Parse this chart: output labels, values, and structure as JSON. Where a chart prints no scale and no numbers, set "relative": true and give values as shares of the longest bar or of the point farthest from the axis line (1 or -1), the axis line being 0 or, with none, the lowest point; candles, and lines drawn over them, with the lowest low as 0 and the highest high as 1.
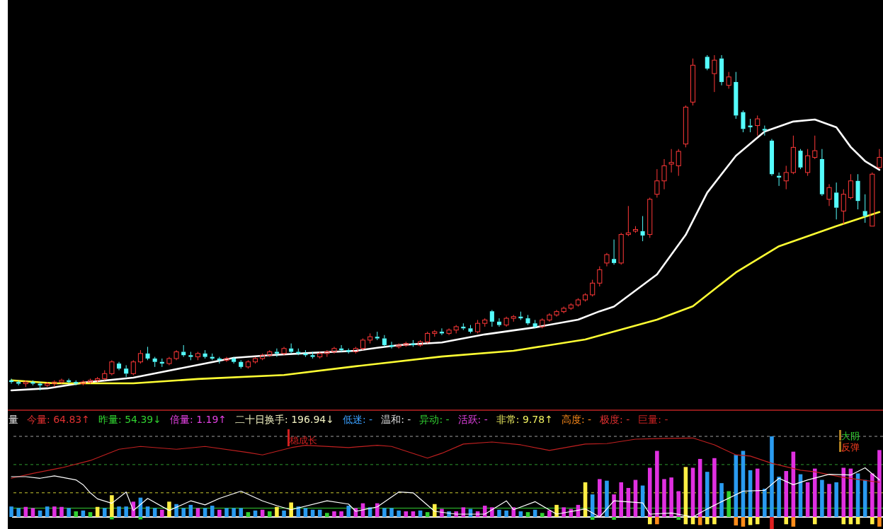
{
  "chart_data": [
    {
      "type": "candlestick",
      "relative": true,
      "colors": [
        "#54fcfc",
        "#54fcfc",
        "#ff3838",
        "#54fcfc",
        "#54fcfc",
        "#ff3838",
        "#ff3838",
        "#ff3838",
        "#54fcfc",
        "#54fcfc",
        "#ff3838",
        "#ff3838",
        "#ff3838",
        "#ff3838",
        "#ff3838",
        "#54fcfc",
        "#54fcfc",
        "#ff3838",
        "#ff3838",
        "#54fcfc",
        "#54fcfc",
        "#54fcfc",
        "#ff3838",
        "#ff3838",
        "#54fcfc",
        "#54fcfc",
        "#ff3838",
        "#54fcfc",
        "#54fcfc",
        "#54fcfc",
        "#ff3838",
        "#54fcfc",
        "#54fcfc",
        "#ff3838",
        "#ff3838",
        "#ff3838",
        "#ff3838",
        "#54fcfc",
        "#ff3838",
        "#54fcfc",
        "#54fcfc",
        "#54fcfc",
        "#54fcfc",
        "#ff3838",
        "#ff3838",
        "#ff3838",
        "#54fcfc",
        "#54fcfc",
        "#ff3838",
        "#ff3838",
        "#ff3838",
        "#54fcfc",
        "#54fcfc",
        "#54fcfc",
        "#ff3838",
        "#ff3838",
        "#54fcfc",
        "#ff3838",
        "#ff3838",
        "#ff3838",
        "#54fcfc",
        "#ff3838",
        "#ff3838",
        "#54fcfc",
        "#54fcfc",
        "#ff3838",
        "#ff3838",
        "#54fcfc",
        "#54fcfc",
        "#ff3838",
        "#ff3838",
        "#54fcfc",
        "#54fcfc",
        "#54fcfc",
        "#ff3838",
        "#ff3838",
        "#ff3838",
        "#ff3838",
        "#ff3838",
        "#ff3838",
        "#ff3838",
        "#ff3838",
        "#ff3838",
        "#ff3838",
        "#54fcfc",
        "#ff3838",
        "#ff3838",
        "#ff3838",
        "#54fcfc",
        "#ff3838",
        "#ff3838",
        "#ff3838",
        "#ff3838",
        "#ff3838",
        "#ff3838",
        "#ff3838",
        null,
        "#54fcfc",
        "#ff3838",
        "#54fcfc",
        "#ff3838",
        "#54fcfc",
        "#54fcfc",
        "#54fcfc",
        "#ff3838",
        "#54fcfc",
        "#54fcfc",
        "#54fcfc",
        "#ff3838",
        "#ff3838",
        "#54fcfc",
        "#ff3838",
        "#ff3838",
        "#54fcfc",
        "#ff3838",
        "#54fcfc",
        "#ff3838",
        "#ff3838",
        "#54fcfc",
        "#54fcfc",
        "#ff3838",
        "#ff3838"
      ],
      "categories": [
        null,
        null,
        null,
        null,
        null,
        null,
        null,
        null,
        null,
        null,
        null,
        null,
        null,
        null,
        null,
        null,
        null,
        null,
        null,
        null,
        null,
        null,
        null,
        null,
        null,
        null,
        null,
        null,
        null,
        null,
        null,
        null,
        null,
        null,
        null,
        null,
        null,
        null,
        null,
        null,
        null,
        null,
        null,
        null,
        null,
        null,
        null,
        null,
        null,
        null,
        null,
        null,
        null,
        null,
        null,
        null,
        null,
        null,
        null,
        null,
        null,
        null,
        null,
        null,
        null,
        null,
        null,
        null,
        null,
        null,
        null,
        null,
        null,
        null,
        null,
        null,
        null,
        null,
        null,
        null,
        null,
        null,
        null,
        null,
        null,
        null,
        null,
        null,
        null,
        null,
        null,
        null,
        null,
        null,
        null,
        null,
        null,
        null,
        null,
        null,
        null,
        null,
        null,
        null,
        null,
        null,
        null,
        null,
        null,
        null,
        null,
        null,
        null,
        null,
        null,
        null,
        null,
        null,
        null,
        null,
        null,
        null
      ],
      "ohlc": [
        [
          0.03,
          0.035,
          0.02,
          0.025
        ],
        [
          0.025,
          0.03,
          0.015,
          0.02
        ],
        [
          0.02,
          0.03,
          0.01,
          0.025
        ],
        [
          0.025,
          0.03,
          0.015,
          0.02
        ],
        [
          0.02,
          0.025,
          0.0,
          0.015
        ],
        [
          0.015,
          0.025,
          0.01,
          0.02
        ],
        [
          0.02,
          0.03,
          0.01,
          0.025
        ],
        [
          0.025,
          0.035,
          0.02,
          0.03
        ],
        [
          0.03,
          0.035,
          0.02,
          0.025
        ],
        [
          0.025,
          0.03,
          0.015,
          0.02
        ],
        [
          0.02,
          0.03,
          0.015,
          0.025
        ],
        [
          0.025,
          0.035,
          0.02,
          0.03
        ],
        [
          0.03,
          0.04,
          0.025,
          0.035
        ],
        [
          0.035,
          0.06,
          0.03,
          0.05
        ],
        [
          0.05,
          0.09,
          0.045,
          0.085
        ],
        [
          0.08,
          0.085,
          0.06,
          0.065
        ],
        [
          0.065,
          0.075,
          0.04,
          0.05
        ],
        [
          0.05,
          0.09,
          0.045,
          0.085
        ],
        [
          0.085,
          0.12,
          0.08,
          0.11
        ],
        [
          0.11,
          0.13,
          0.09,
          0.095
        ],
        [
          0.095,
          0.1,
          0.07,
          0.085
        ],
        [
          0.085,
          0.095,
          0.07,
          0.08
        ],
        [
          0.08,
          0.1,
          0.075,
          0.095
        ],
        [
          0.095,
          0.12,
          0.09,
          0.115
        ],
        [
          0.115,
          0.135,
          0.1,
          0.105
        ],
        [
          0.105,
          0.115,
          0.09,
          0.1
        ],
        [
          0.1,
          0.115,
          0.09,
          0.11
        ],
        [
          0.11,
          0.12,
          0.095,
          0.1
        ],
        [
          0.1,
          0.11,
          0.09,
          0.095
        ],
        [
          0.095,
          0.1,
          0.08,
          0.09
        ],
        [
          0.09,
          0.1,
          0.085,
          0.095
        ],
        [
          0.095,
          0.1,
          0.08,
          0.085
        ],
        [
          0.085,
          0.09,
          0.065,
          0.07
        ],
        [
          0.07,
          0.09,
          0.065,
          0.085
        ],
        [
          0.085,
          0.1,
          0.08,
          0.095
        ],
        [
          0.095,
          0.11,
          0.09,
          0.105
        ],
        [
          0.105,
          0.12,
          0.1,
          0.115
        ],
        [
          0.115,
          0.125,
          0.1,
          0.11
        ],
        [
          0.11,
          0.13,
          0.105,
          0.125
        ],
        [
          0.125,
          0.14,
          0.11,
          0.115
        ],
        [
          0.115,
          0.125,
          0.105,
          0.11
        ],
        [
          0.11,
          0.12,
          0.1,
          0.105
        ],
        [
          0.105,
          0.115,
          0.095,
          0.1
        ],
        [
          0.1,
          0.115,
          0.095,
          0.11
        ],
        [
          0.11,
          0.12,
          0.1,
          0.115
        ],
        [
          0.115,
          0.13,
          0.11,
          0.125
        ],
        [
          0.125,
          0.135,
          0.115,
          0.12
        ],
        [
          0.12,
          0.125,
          0.11,
          0.115
        ],
        [
          0.115,
          0.13,
          0.11,
          0.125
        ],
        [
          0.125,
          0.155,
          0.12,
          0.15
        ],
        [
          0.15,
          0.17,
          0.14,
          0.16
        ],
        [
          0.16,
          0.175,
          0.15,
          0.155
        ],
        [
          0.155,
          0.165,
          0.13,
          0.135
        ],
        [
          0.135,
          0.145,
          0.125,
          0.13
        ],
        [
          0.13,
          0.14,
          0.125,
          0.135
        ],
        [
          0.135,
          0.145,
          0.13,
          0.14
        ],
        [
          0.14,
          0.15,
          0.13,
          0.135
        ],
        [
          0.135,
          0.15,
          0.13,
          0.145
        ],
        [
          0.145,
          0.175,
          0.14,
          0.17
        ],
        [
          0.17,
          0.18,
          0.16,
          0.175
        ],
        [
          0.175,
          0.185,
          0.165,
          0.17
        ],
        [
          0.17,
          0.185,
          0.165,
          0.18
        ],
        [
          0.18,
          0.195,
          0.17,
          0.19
        ],
        [
          0.19,
          0.2,
          0.18,
          0.185
        ],
        [
          0.185,
          0.195,
          0.17,
          0.175
        ],
        [
          0.175,
          0.21,
          0.17,
          0.2
        ],
        [
          0.2,
          0.215,
          0.19,
          0.21
        ],
        [
          0.236,
          0.24,
          0.19,
          0.205
        ],
        [
          0.205,
          0.215,
          0.19,
          0.195
        ],
        [
          0.195,
          0.22,
          0.19,
          0.215
        ],
        [
          0.215,
          0.225,
          0.205,
          0.22
        ],
        [
          0.22,
          0.235,
          0.21,
          0.215
        ],
        [
          0.215,
          0.225,
          0.195,
          0.2
        ],
        [
          0.2,
          0.21,
          0.185,
          0.19
        ],
        [
          0.19,
          0.215,
          0.185,
          0.21
        ],
        [
          0.21,
          0.23,
          0.205,
          0.225
        ],
        [
          0.225,
          0.24,
          0.22,
          0.235
        ],
        [
          0.235,
          0.25,
          0.23,
          0.245
        ],
        [
          0.245,
          0.26,
          0.24,
          0.255
        ],
        [
          0.255,
          0.275,
          0.25,
          0.27
        ],
        [
          0.27,
          0.29,
          0.265,
          0.285
        ],
        [
          0.285,
          0.33,
          0.28,
          0.32
        ],
        [
          0.32,
          0.37,
          0.31,
          0.36
        ],
        [
          0.38,
          0.41,
          0.37,
          0.405
        ],
        [
          0.392,
          0.45,
          0.375,
          0.38
        ],
        [
          0.38,
          0.47,
          0.375,
          0.465
        ],
        [
          0.465,
          0.55,
          0.46,
          0.47
        ],
        [
          0.475,
          0.49,
          0.47,
          0.48
        ],
        [
          0.475,
          0.52,
          0.445,
          0.462
        ],
        [
          0.465,
          0.575,
          0.455,
          0.57
        ],
        [
          0.585,
          0.66,
          0.575,
          0.625
        ],
        [
          0.625,
          0.69,
          0.6,
          0.67
        ],
        [
          0.675,
          0.72,
          0.65,
          0.68
        ],
        [
          0.67,
          0.72,
          0.64,
          0.713
        ],
        [
          0.735,
          0.85,
          0.725,
          0.845
        ],
        [
          0.86,
          0.99,
          0.85,
          0.97
        ],
        null,
        [
          0.995,
          1.0,
          0.955,
          0.96
        ],
        [
          0.945,
          1.0,
          0.89,
          0.985
        ],
        [
          0.99,
          1.0,
          0.91,
          0.92
        ],
        [
          0.91,
          0.95,
          0.9,
          0.935
        ],
        [
          0.92,
          0.95,
          0.81,
          0.82
        ],
        [
          0.83,
          0.835,
          0.77,
          0.78
        ],
        [
          0.79,
          0.81,
          0.77,
          0.785
        ],
        [
          0.79,
          0.82,
          0.76,
          0.81
        ],
        [
          0.78,
          0.79,
          0.76,
          0.775
        ],
        [
          0.745,
          0.75,
          0.64,
          0.645
        ],
        [
          0.64,
          0.65,
          0.61,
          0.635
        ],
        [
          0.625,
          0.67,
          0.6,
          0.65
        ],
        [
          0.65,
          0.76,
          0.645,
          0.725
        ],
        [
          0.715,
          0.72,
          0.66,
          0.665
        ],
        [
          0.65,
          0.72,
          0.64,
          0.7
        ],
        [
          0.695,
          0.76,
          0.69,
          0.715
        ],
        [
          0.69,
          0.72,
          0.58,
          0.585
        ],
        [
          0.57,
          0.615,
          0.55,
          0.605
        ],
        [
          0.59,
          0.62,
          0.51,
          0.545
        ],
        [
          0.535,
          0.6,
          0.495,
          0.585
        ],
        [
          0.575,
          0.645,
          0.57,
          0.625
        ],
        [
          0.625,
          0.645,
          0.54,
          0.565
        ],
        [
          0.535,
          0.585,
          0.5,
          0.52
        ],
        [
          0.49,
          0.65,
          0.49,
          0.645
        ],
        [
          0.665,
          0.72,
          0.66,
          0.695
        ]
      ],
      "series": [
        {
          "type": "line",
          "color": "#ffffff",
          "values": [
            0,
            null,
            null,
            null,
            null,
            0.006,
            null,
            null,
            null,
            null,
            0.023,
            null,
            null,
            null,
            null,
            null,
            null,
            0.038,
            null,
            null,
            null,
            0.055,
            null,
            null,
            null,
            null,
            0.076,
            null,
            null,
            null,
            null,
            0.097,
            null,
            null,
            null,
            null,
            0.105,
            null,
            null,
            null,
            null,
            null,
            0.112,
            null,
            null,
            null,
            null,
            null,
            0.118,
            null,
            null,
            0.127,
            null,
            null,
            0.135,
            null,
            null,
            null,
            null,
            null,
            0.143,
            null,
            null,
            null,
            null,
            null,
            0.167,
            null,
            null,
            null,
            null,
            null,
            null,
            0.188,
            null,
            null,
            null,
            null,
            null,
            0.211,
            null,
            null,
            0.236,
            null,
            0.25,
            null,
            null,
            null,
            null,
            null,
            0.346,
            null,
            null,
            null,
            0.464,
            null,
            null,
            0.59,
            null,
            null,
            null,
            0.7,
            null,
            null,
            null,
            0.772,
            null,
            null,
            null,
            0.802,
            null,
            null,
            0.808,
            null,
            null,
            0.785,
            null,
            0.726,
            null,
            0.684,
            null,
            0.658
          ]
        },
        {
          "type": "line",
          "color": "#ffff33",
          "values": [
            0.03,
            null,
            null,
            null,
            null,
            null,
            0.021,
            null,
            null,
            null,
            null,
            null,
            null,
            null,
            null,
            null,
            null,
            0.021,
            null,
            null,
            null,
            null,
            null,
            null,
            null,
            null,
            0.034,
            null,
            null,
            null,
            null,
            null,
            null,
            null,
            null,
            null,
            null,
            null,
            0.046,
            null,
            null,
            null,
            null,
            null,
            null,
            null,
            null,
            null,
            0.072,
            null,
            null,
            null,
            null,
            null,
            null,
            null,
            null,
            null,
            null,
            null,
            0.101,
            null,
            null,
            null,
            null,
            null,
            null,
            null,
            null,
            null,
            0.118,
            null,
            null,
            null,
            null,
            null,
            null,
            null,
            null,
            null,
            0.152,
            null,
            null,
            null,
            null,
            null,
            null,
            null,
            null,
            null,
            0.211,
            null,
            null,
            null,
            null,
            0.251,
            null,
            null,
            null,
            null,
            null,
            0.352,
            null,
            null,
            null,
            null,
            null,
            0.43,
            null,
            null,
            null,
            null,
            null,
            null,
            null,
            0.49,
            null,
            null,
            null,
            null,
            null,
            0.532
          ]
        }
      ]
    },
    {
      "type": "bar",
      "relative": true,
      "line_style": "solid",
      "categories": [
        null,
        null,
        null,
        null,
        null,
        null,
        null,
        null,
        null,
        null,
        null,
        null,
        null,
        null,
        null,
        null,
        null,
        null,
        null,
        null,
        null,
        null,
        null,
        null,
        null,
        null,
        null,
        null,
        null,
        null,
        null,
        null,
        null,
        null,
        null,
        null,
        null,
        null,
        null,
        null,
        null,
        null,
        null,
        null,
        null,
        null,
        null,
        null,
        null,
        null,
        null,
        null,
        null,
        null,
        null,
        null,
        null,
        null,
        null,
        null,
        null,
        null,
        null,
        null,
        null,
        null,
        null,
        null,
        null,
        null,
        null,
        null,
        null,
        null,
        null,
        null,
        null,
        null,
        null,
        null,
        null,
        null,
        null,
        null,
        null,
        null,
        null,
        null,
        null,
        null,
        null,
        null,
        null,
        null,
        null,
        null,
        null,
        null,
        null,
        null,
        null,
        null,
        null,
        null,
        null,
        null,
        null,
        null,
        null,
        null,
        null,
        null,
        null,
        null,
        null,
        null,
        null,
        null,
        null,
        null,
        null,
        null
      ],
      "series": [
        {
          "type": "bar",
          "values": [
            0.13,
            0.11,
            0.125,
            0.11,
            0.08,
            0.13,
            0.13,
            0.125,
            0.11,
            0.07,
            0.08,
            0.06,
            0.125,
            0.11,
            0.27,
            0.13,
            0.13,
            0.19,
            0.24,
            0.13,
            0.11,
            0.09,
            0.19,
            0.16,
            0.11,
            0.15,
            0.11,
            0.11,
            0.14,
            0.09,
            0.11,
            0.11,
            0.11,
            0.06,
            0.08,
            0.09,
            0.07,
            0.125,
            0.08,
            0.18,
            0.13,
            0.11,
            0.09,
            0.09,
            0.05,
            0.07,
            0.07,
            0.14,
            0.11,
            0.17,
            0.12,
            0.17,
            0.11,
            0.11,
            0.08,
            0.07,
            0.07,
            0.08,
            0.06,
            0.16,
            0.1,
            0.07,
            0.07,
            0.12,
            0.1,
            0.07,
            0.14,
            0.12,
            0.09,
            0.08,
            0.12,
            0.07,
            0.06,
            0.09,
            0.05,
            0.08,
            0.15,
            0.12,
            0.1,
            0.15,
            0.43,
            0.28,
            0.47,
            0.45,
            0.28,
            0.43,
            0.36,
            0.46,
            0.39,
            0.61,
            0.82,
            0.47,
            0.49,
            0.32,
            0.62,
            0.61,
            0.72,
            0.56,
            0.73,
            0.42,
            0.32,
            0.77,
            0.82,
            0.58,
            0.6,
            0.35,
            1.0,
            0.5,
            0.57,
            0.81,
            0.53,
            0.43,
            0.6,
            0.46,
            0.41,
            0.43,
            0.61,
            0.6,
            0.54,
            0.46,
            0.54,
            0.83
          ],
          "colors": [
            "#2a9bf0",
            "#2a9bf0",
            "#e030e0",
            "#e030e0",
            "#2a9bf0",
            "#2a9bf0",
            "#e030e0",
            "#e030e0",
            "#2a9bf0",
            "#30d030",
            "#2a9bf0",
            "#30d030",
            "#ffee44",
            "#2a9bf0",
            "#ffee44",
            "#2a9bf0",
            "#2a9bf0",
            "#e030e0",
            "#2a9bf0",
            "#2a9bf0",
            "#2a9bf0",
            "#e030e0",
            "#ffee44",
            "#2a9bf0",
            "#2a9bf0",
            "#2a9bf0",
            "#e030e0",
            "#2a9bf0",
            "#2a9bf0",
            "#e030e0",
            "#2a9bf0",
            "#2a9bf0",
            "#2a9bf0",
            "#30d030",
            "#2a9bf0",
            "#e030e0",
            "#30d030",
            "#ffee44",
            "#2a9bf0",
            "#ffee44",
            "#2a9bf0",
            "#2a9bf0",
            "#2a9bf0",
            "#2a9bf0",
            "#30d030",
            "#e030e0",
            "#e030e0",
            "#2a9bf0",
            "#e030e0",
            "#e030e0",
            "#2a9bf0",
            "#e030e0",
            "#2a9bf0",
            "#2a9bf0",
            "#2a9bf0",
            "#e030e0",
            "#e030e0",
            "#2a9bf0",
            "#30d030",
            "#ffee44",
            "#e030e0",
            "#2a9bf0",
            "#e030e0",
            "#e030e0",
            "#2a9bf0",
            "#e030e0",
            "#e030e0",
            "#e030e0",
            "#2a9bf0",
            "#2a9bf0",
            "#e030e0",
            "#2a9bf0",
            "#30d030",
            "#2a9bf0",
            "#30d030",
            "#e030e0",
            "#ffee44",
            "#e030e0",
            "#e030e0",
            "#e030e0",
            "#ffee44",
            "#2a9bf0",
            "#e030e0",
            "#2a9bf0",
            "#e030e0",
            "#e030e0",
            "#e030e0",
            "#e030e0",
            "#2a9bf0",
            "#e030e0",
            "#e030e0",
            "#e030e0",
            "#e030e0",
            "#e030e0",
            "#ffee44",
            "#e030e0",
            "#e030e0",
            "#2a9bf0",
            "#e030e0",
            "#2a9bf0",
            "#30d030",
            "#2a9bf0",
            "#2a9bf0",
            "#2a9bf0",
            "#e030e0",
            "#2a9bf0",
            "#2a9bf0",
            "#2a9bf0",
            "#e030e0",
            "#e030e0",
            "#2a9bf0",
            "#e030e0",
            "#e030e0",
            "#2a9bf0",
            "#e030e0",
            "#2a9bf0",
            "#e030e0",
            "#e030e0",
            "#2a9bf0",
            "#2a9bf0",
            "#e030e0",
            "#e030e0"
          ]
        },
        {
          "type": "bar",
          "values": [
            null,
            null,
            null,
            null,
            null,
            null,
            null,
            null,
            null,
            null,
            null,
            null,
            null,
            null,
            -0.03,
            null,
            null,
            null,
            -0.03,
            null,
            null,
            null,
            null,
            null,
            null,
            null,
            null,
            null,
            null,
            null,
            null,
            null,
            null,
            null,
            null,
            null,
            null,
            null,
            null,
            null,
            null,
            null,
            null,
            null,
            null,
            null,
            null,
            null,
            null,
            null,
            null,
            null,
            null,
            null,
            null,
            null,
            null,
            null,
            null,
            null,
            null,
            null,
            null,
            null,
            null,
            null,
            null,
            null,
            null,
            null,
            null,
            null,
            null,
            null,
            null,
            null,
            null,
            null,
            null,
            null,
            null,
            -0.035,
            null,
            null,
            -0.035,
            null,
            null,
            null,
            null,
            -0.09,
            -0.09,
            null,
            null,
            -0.035,
            -0.09,
            -0.09,
            -0.1,
            -0.09,
            -0.09,
            null,
            null,
            -0.105,
            -0.12,
            -0.1,
            -0.09,
            null,
            -0.16,
            null,
            -0.09,
            -0.12,
            null,
            null,
            -0.09,
            null,
            null,
            null,
            -0.09,
            -0.09,
            -0.09,
            null,
            -0.09,
            -0.12
          ],
          "colors": [
            null,
            null,
            null,
            null,
            null,
            null,
            null,
            null,
            null,
            null,
            null,
            null,
            null,
            null,
            "#30d030",
            null,
            null,
            null,
            "#30d030",
            null,
            null,
            null,
            null,
            null,
            null,
            null,
            null,
            null,
            null,
            null,
            null,
            null,
            null,
            null,
            null,
            null,
            null,
            null,
            null,
            null,
            null,
            null,
            null,
            null,
            null,
            null,
            null,
            null,
            null,
            null,
            null,
            null,
            null,
            null,
            null,
            null,
            null,
            null,
            null,
            null,
            null,
            null,
            null,
            null,
            null,
            null,
            null,
            null,
            null,
            null,
            null,
            null,
            null,
            null,
            null,
            null,
            null,
            null,
            null,
            null,
            null,
            "#30d030",
            null,
            null,
            "#30d030",
            null,
            null,
            null,
            null,
            "#ffee44",
            "#ff8c1a",
            null,
            null,
            "#30d030",
            "#ffee44",
            "#ffee44",
            "#ff8c1a",
            "#ffee44",
            "#ffee44",
            null,
            null,
            "#ff8c1a",
            "#ff8c1a",
            "#ffee44",
            "#ffee44",
            null,
            "#e02020",
            null,
            "#ffee44",
            "#ff8c1a",
            null,
            null,
            "#ffee44",
            null,
            null,
            null,
            "#ffee44",
            "#ffee44",
            "#ffee44",
            null,
            "#ffee44",
            "#ff8c1a"
          ]
        },
        {
          "type": "line",
          "color": "#c02020",
          "values": [
            0.48,
            null,
            null,
            0.54,
            null,
            null,
            null,
            0.61,
            null,
            null,
            null,
            0.7,
            null,
            null,
            null,
            0.84,
            null,
            null,
            0.875,
            null,
            null,
            null,
            null,
            0.84,
            null,
            null,
            null,
            0.875,
            null,
            null,
            null,
            null,
            null,
            0.8,
            null,
            0.77,
            null,
            null,
            null,
            0.86,
            null,
            0.89,
            null,
            null,
            null,
            null,
            null,
            0.86,
            null,
            null,
            null,
            0.89,
            null,
            0.875,
            null,
            null,
            null,
            null,
            0.73,
            null,
            0.79,
            null,
            null,
            0.905,
            null,
            null,
            null,
            0.93,
            null,
            null,
            null,
            0.895,
            null,
            null,
            null,
            0.825,
            null,
            null,
            null,
            null,
            0.905,
            null,
            null,
            0.91,
            null,
            null,
            null,
            0.965,
            null,
            null,
            null,
            0.975,
            null,
            null,
            null,
            0.98,
            null,
            null,
            0.895,
            null,
            null,
            0.77,
            null,
            0.755,
            null,
            null,
            0.665,
            null,
            null,
            null,
            0.58,
            null,
            0.56,
            null,
            null,
            null,
            0.49,
            null,
            null,
            null,
            null,
            0.43
          ]
        },
        {
          "type": "line",
          "color": "#ffffff",
          "values": [
            0.5,
            null,
            0.5,
            null,
            0.48,
            null,
            0.51,
            null,
            null,
            0.46,
            0.4,
            0.3,
            0.225,
            null,
            0.17,
            null,
            0.31,
            0.08,
            null,
            0.23,
            null,
            null,
            0.08,
            null,
            null,
            0.2,
            null,
            0.15,
            null,
            0.23,
            null,
            null,
            0.32,
            null,
            null,
            0.2,
            null,
            0.14,
            null,
            0.09,
            null,
            null,
            null,
            null,
            0.2,
            null,
            null,
            0.16,
            0.07,
            null,
            null,
            0.125,
            null,
            null,
            0.31,
            null,
            0.3,
            null,
            null,
            0.07,
            null,
            null,
            0.035,
            null,
            null,
            null,
            0.035,
            null,
            null,
            0.2,
            0.09,
            null,
            null,
            0.19,
            null,
            null,
            0.035,
            null,
            null,
            null,
            0.1,
            null,
            0,
            null,
            0.2,
            null,
            null,
            null,
            0.175,
            0.035,
            null,
            null,
            0.05,
            null,
            null,
            0,
            null,
            0.1,
            null,
            0.19,
            null,
            null,
            0.32,
            null,
            null,
            0.33,
            null,
            0.48,
            null,
            0.4,
            null,
            0.46,
            null,
            null,
            0.53,
            null,
            null,
            0.52,
            null,
            0.61,
            null,
            0.46
          ]
        }
      ],
      "ref_lines": [
        {
          "axis": "y",
          "value": 1.0,
          "color": "#a0a0a0",
          "line_style": "dashed"
        },
        {
          "axis": "y",
          "value": 0.65,
          "color": "#2e9b2e",
          "line_style": "dashed"
        },
        {
          "axis": "y",
          "value": 0.3,
          "color": "#cccc33",
          "line_style": "dashed"
        },
        {
          "axis": "y",
          "value": 0.11,
          "color": "#33cc33",
          "line_style": "solid"
        }
      ],
      "annotations": [
        "量",
        "今量: 64.83↑",
        "昨量: 54.39↓",
        "倍量: 1.19↑",
        "二十日换手: 196.94↓",
        "低迷: -",
        "温和: -",
        "异动: -",
        "活跃: -",
        "非常: 9.78↑",
        "高度: -",
        "极度: -",
        "巨量: -",
        "稳成长",
        "大阴",
        "反弹"
      ]
    }
  ]
}
